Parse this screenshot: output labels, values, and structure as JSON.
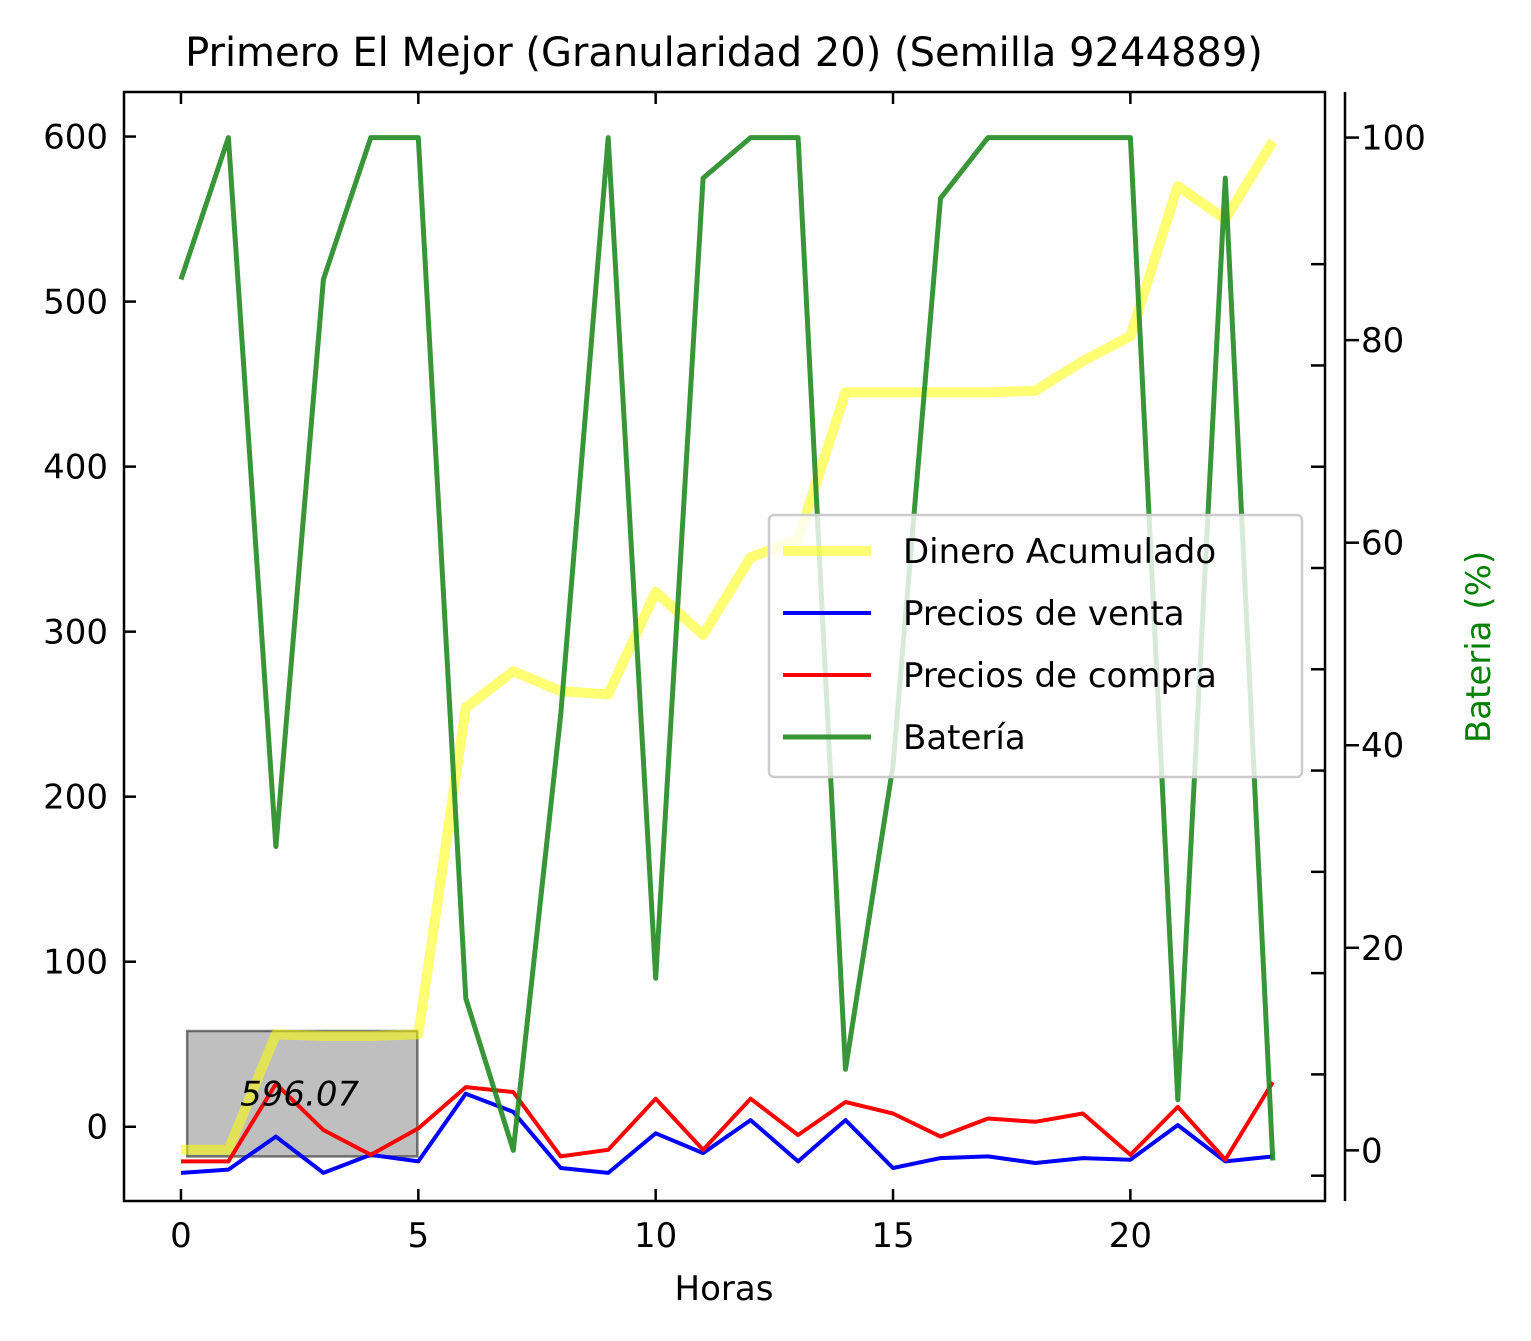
{
  "chart_data": {
    "type": "line",
    "title": "Primero El Mejor (Granularidad 20) (Semilla 9244889)",
    "xlabel": "Horas",
    "ylabel": "",
    "ylabel_right": "Bateria (%)",
    "ylabel_right_color": "#008000",
    "x": [
      0,
      1,
      2,
      3,
      4,
      5,
      6,
      7,
      8,
      9,
      10,
      11,
      12,
      13,
      14,
      15,
      16,
      17,
      18,
      19,
      20,
      21,
      22,
      23
    ],
    "xlim": [
      -1.2,
      24.1
    ],
    "ylim": [
      -45,
      627
    ],
    "ylim_right": [
      -5,
      104.5
    ],
    "x_ticks": [
      "0",
      "5",
      "10",
      "15",
      "20"
    ],
    "x_tick_values": [
      0,
      5,
      10,
      15,
      20
    ],
    "y_ticks": [
      "0",
      "100",
      "200",
      "300",
      "400",
      "500",
      "600"
    ],
    "y_tick_values": [
      0,
      100,
      200,
      300,
      400,
      500,
      600
    ],
    "y_minor_values": [],
    "y_right_ticks": [
      "0",
      "20",
      "40",
      "60",
      "80",
      "100"
    ],
    "y_right_tick_values": [
      0,
      20,
      40,
      60,
      80,
      100
    ],
    "y_right_minor_values": [
      -2.5,
      7.5,
      17.5,
      27.5,
      37.5,
      47.5,
      57.5,
      67.5,
      77.5,
      87.5
    ],
    "grid": false,
    "legend_position": "center-right",
    "series": [
      {
        "name": "Dinero Acumulado",
        "axis": "left",
        "color": "#ffff00",
        "opacity": 0.55,
        "values": [
          -14,
          -14,
          56,
          55,
          55,
          56,
          254,
          276,
          264,
          262,
          324,
          298,
          345,
          356,
          445,
          445,
          445,
          445,
          446,
          464,
          479,
          570,
          550,
          597
        ]
      },
      {
        "name": "Precios de venta",
        "axis": "left",
        "color": "#0000ff",
        "opacity": 1,
        "values": [
          -28,
          -26,
          -6,
          -28,
          -17,
          -21,
          20,
          9,
          -25,
          -28,
          -4,
          -16,
          4,
          -21,
          4,
          -25,
          -19,
          -18,
          -22,
          -19,
          -20,
          1,
          -21,
          -18
        ]
      },
      {
        "name": "Precios de compra",
        "axis": "left",
        "color": "#ff0000",
        "opacity": 1,
        "values": [
          -21,
          -21,
          26,
          -2,
          -17,
          -1,
          24,
          21,
          -18,
          -14,
          17,
          -14,
          17,
          -5,
          15,
          8,
          -6,
          5,
          3,
          8,
          -17,
          12,
          -20,
          27
        ]
      },
      {
        "name": "Batería",
        "axis": "right",
        "color": "#228b22",
        "opacity": 0.9,
        "values": [
          86,
          100,
          30,
          86,
          100,
          100,
          15,
          0,
          43,
          100,
          17,
          96,
          100,
          100,
          8,
          38,
          94,
          100,
          100,
          100,
          100,
          5,
          96,
          -1
        ]
      }
    ],
    "annotation": {
      "text": "596.07",
      "x": 2.5,
      "y": 20,
      "box_x_range": [
        0.13,
        4.98
      ],
      "box_y_range": [
        -18,
        58
      ],
      "box_color": "#808080",
      "box_opacity": 0.5
    }
  }
}
